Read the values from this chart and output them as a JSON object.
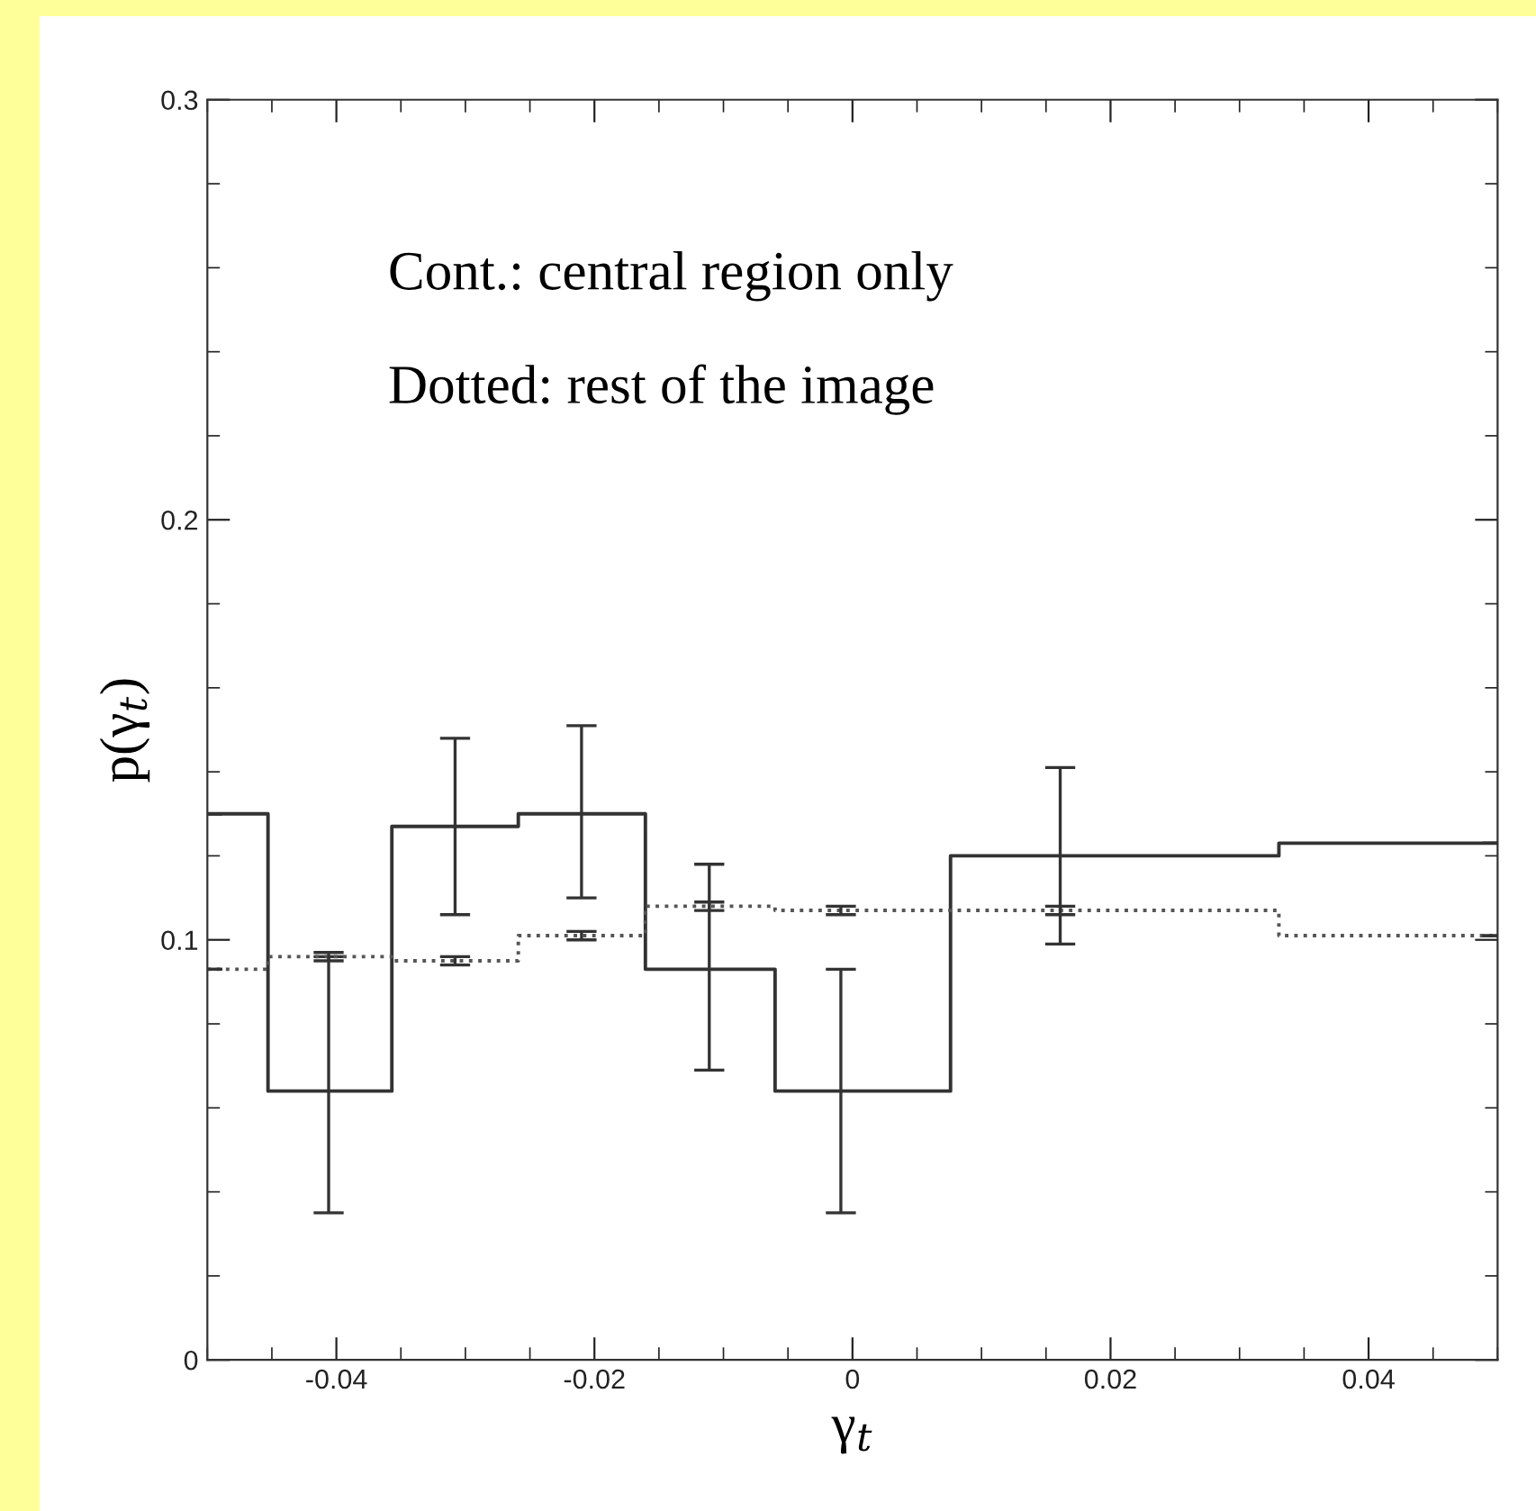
{
  "chart_data": {
    "type": "step",
    "xlabel": "γ$_{t}$",
    "ylabel": "p(γ$_{t}$)",
    "annotations": [
      "Cont.: central region only",
      "Dotted: rest of the image"
    ],
    "xlim": [
      -0.05,
      0.05
    ],
    "ylim": [
      0,
      0.3
    ],
    "xticks": [
      {
        "value": -0.05,
        "label": null
      },
      {
        "value": -0.045,
        "label": null
      },
      {
        "value": -0.04,
        "label": "-0.04"
      },
      {
        "value": -0.035,
        "label": null
      },
      {
        "value": -0.03,
        "label": null
      },
      {
        "value": -0.025,
        "label": null
      },
      {
        "value": -0.02,
        "label": "-0.02"
      },
      {
        "value": -0.015,
        "label": null
      },
      {
        "value": -0.01,
        "label": null
      },
      {
        "value": -0.005,
        "label": null
      },
      0,
      {
        "value": 0.005,
        "label": null
      },
      {
        "value": 0.01,
        "label": null
      },
      {
        "value": 0.015,
        "label": null
      },
      {
        "value": 0.02,
        "label": "0.02"
      },
      {
        "value": 0.025,
        "label": null
      },
      {
        "value": 0.03,
        "label": null
      },
      {
        "value": 0.035,
        "label": null
      },
      {
        "value": 0.04,
        "label": "0.04"
      },
      {
        "value": 0.045,
        "label": null
      },
      {
        "value": 0.05,
        "label": null
      }
    ],
    "yticks": [
      0,
      {
        "value": 0.02,
        "label": null
      },
      {
        "value": 0.04,
        "label": null
      },
      {
        "value": 0.06,
        "label": null
      },
      {
        "value": 0.08,
        "label": null
      },
      0.1,
      {
        "value": 0.12,
        "label": null
      },
      {
        "value": 0.14,
        "label": null
      },
      {
        "value": 0.16,
        "label": null
      },
      {
        "value": 0.18,
        "label": null
      },
      0.2,
      {
        "value": 0.22,
        "label": null
      },
      {
        "value": 0.24,
        "label": null
      },
      {
        "value": 0.26,
        "label": null
      },
      {
        "value": 0.28,
        "label": null
      },
      0.3
    ],
    "grid": false,
    "legend": false,
    "series": [
      {
        "line_style": "solid",
        "color": "#333333",
        "x": [
          -0.05,
          -0.0406,
          -0.0308,
          -0.021,
          -0.0111,
          -0.0009,
          0.0161,
          0.05
        ],
        "values": [
          0.13,
          0.064,
          0.127,
          0.13,
          0.093,
          0.064,
          0.12,
          0.123
        ],
        "errors": [
          null,
          [
            0.035,
            0.096
          ],
          [
            0.106,
            0.148
          ],
          [
            0.11,
            0.151
          ],
          [
            0.069,
            0.118
          ],
          [
            0.035,
            0.093
          ],
          [
            0.099,
            0.141
          ],
          null
        ]
      },
      {
        "line_style": "dotted",
        "color": "#555555",
        "x": [
          -0.05,
          -0.0406,
          -0.0308,
          -0.021,
          -0.0111,
          -0.0009,
          0.0161,
          0.05
        ],
        "values": [
          0.093,
          0.096,
          0.095,
          0.101,
          0.108,
          0.107,
          0.107,
          0.101
        ],
        "errors": [
          null,
          0.001,
          0.001,
          0.001,
          0.001,
          0.001,
          0.001,
          null
        ]
      }
    ]
  }
}
